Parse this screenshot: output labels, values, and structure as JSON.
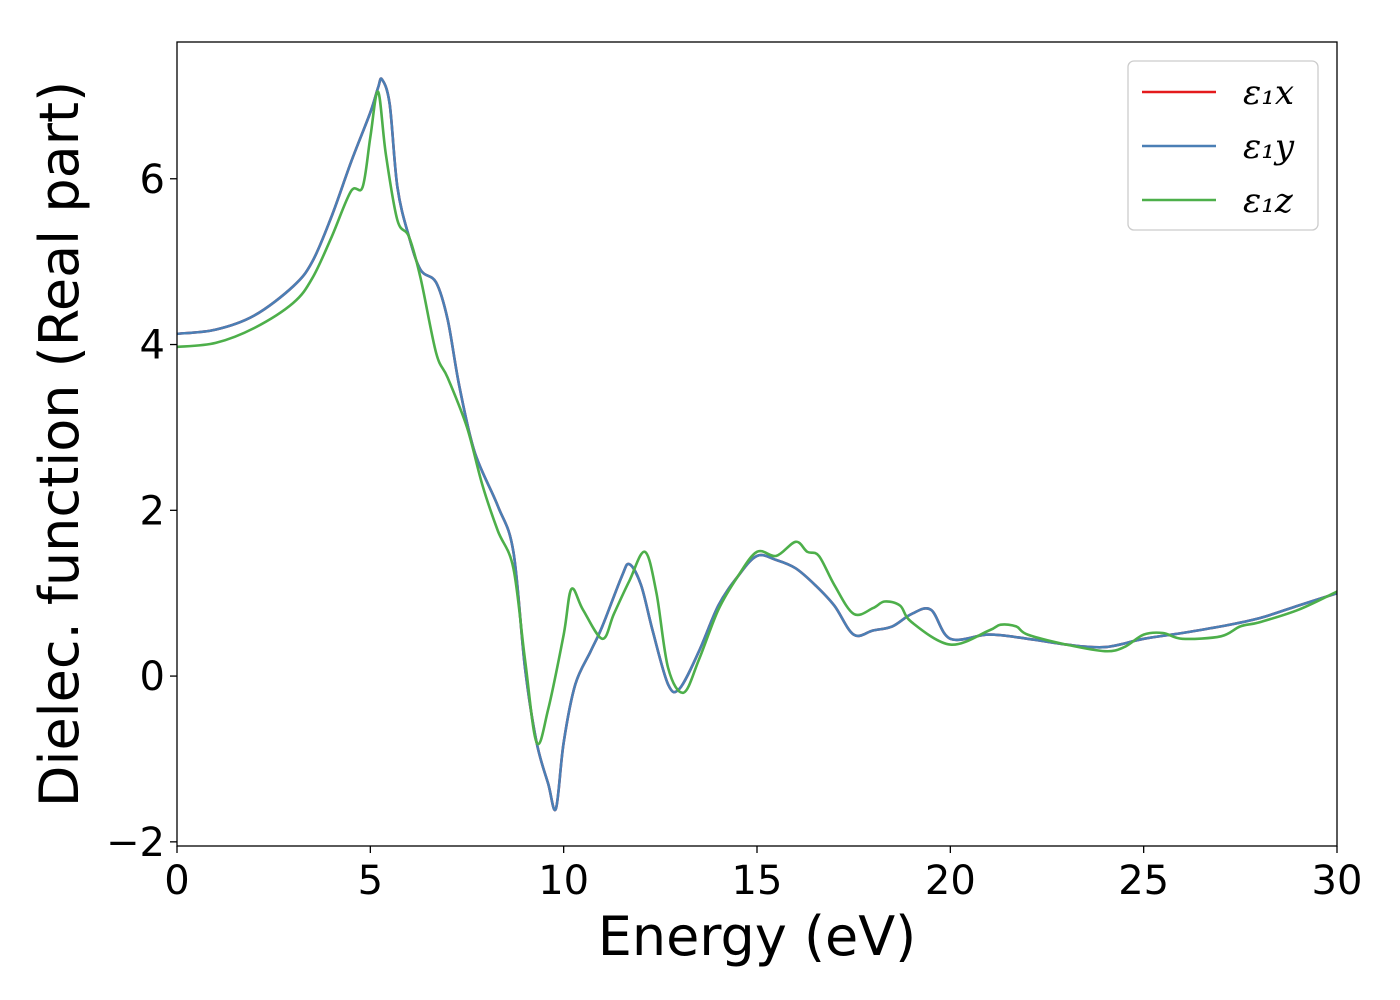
{
  "chart_data": {
    "type": "line",
    "title": "",
    "xlabel": "Energy (eV)",
    "ylabel": "Dielec. function (Real part)",
    "xlim": [
      0,
      30
    ],
    "ylim": [
      -2.05,
      7.65
    ],
    "xticks": [
      0,
      5,
      10,
      15,
      20,
      25,
      30
    ],
    "xtick_labels": [
      "0",
      "5",
      "10",
      "15",
      "20",
      "25",
      "30"
    ],
    "yticks": [
      -2,
      0,
      2,
      4,
      6
    ],
    "ytick_labels": [
      "−2",
      "0",
      "2",
      "4",
      "6"
    ],
    "grid": false,
    "legend_position": "top-right",
    "series": [
      {
        "name": "ε₁x",
        "color": "#e41a1c",
        "points": [
          [
            0,
            4.13
          ],
          [
            1,
            4.18
          ],
          [
            2,
            4.35
          ],
          [
            3,
            4.7
          ],
          [
            3.5,
            5.0
          ],
          [
            4,
            5.55
          ],
          [
            4.5,
            6.2
          ],
          [
            5,
            6.8
          ],
          [
            5.2,
            7.1
          ],
          [
            5.3,
            7.2
          ],
          [
            5.5,
            6.9
          ],
          [
            5.7,
            5.9
          ],
          [
            6,
            5.3
          ],
          [
            6.3,
            4.9
          ],
          [
            6.7,
            4.75
          ],
          [
            7,
            4.3
          ],
          [
            7.3,
            3.5
          ],
          [
            7.7,
            2.7
          ],
          [
            8.3,
            2.05
          ],
          [
            8.7,
            1.5
          ],
          [
            9,
            0.1
          ],
          [
            9.3,
            -0.8
          ],
          [
            9.6,
            -1.3
          ],
          [
            9.8,
            -1.6
          ],
          [
            10,
            -0.8
          ],
          [
            10.3,
            -0.1
          ],
          [
            10.7,
            0.3
          ],
          [
            11,
            0.6
          ],
          [
            11.5,
            1.2
          ],
          [
            11.7,
            1.35
          ],
          [
            12,
            1.1
          ],
          [
            12.3,
            0.55
          ],
          [
            12.7,
            -0.1
          ],
          [
            13,
            -0.15
          ],
          [
            13.5,
            0.3
          ],
          [
            14,
            0.85
          ],
          [
            14.5,
            1.2
          ],
          [
            15,
            1.45
          ],
          [
            15.5,
            1.4
          ],
          [
            16,
            1.3
          ],
          [
            16.5,
            1.1
          ],
          [
            17,
            0.85
          ],
          [
            17.5,
            0.5
          ],
          [
            18,
            0.55
          ],
          [
            18.5,
            0.6
          ],
          [
            19,
            0.75
          ],
          [
            19.5,
            0.8
          ],
          [
            20,
            0.45
          ],
          [
            21,
            0.5
          ],
          [
            22,
            0.45
          ],
          [
            23,
            0.38
          ],
          [
            24,
            0.35
          ],
          [
            25,
            0.45
          ],
          [
            26,
            0.52
          ],
          [
            27,
            0.6
          ],
          [
            28,
            0.7
          ],
          [
            29,
            0.85
          ],
          [
            30,
            1.0
          ]
        ]
      },
      {
        "name": "ε₁y",
        "color": "#4a7fb5",
        "points": [
          [
            0,
            4.13
          ],
          [
            1,
            4.18
          ],
          [
            2,
            4.35
          ],
          [
            3,
            4.7
          ],
          [
            3.5,
            5.0
          ],
          [
            4,
            5.55
          ],
          [
            4.5,
            6.2
          ],
          [
            5,
            6.8
          ],
          [
            5.2,
            7.1
          ],
          [
            5.3,
            7.2
          ],
          [
            5.5,
            6.9
          ],
          [
            5.7,
            5.9
          ],
          [
            6,
            5.3
          ],
          [
            6.3,
            4.9
          ],
          [
            6.7,
            4.75
          ],
          [
            7,
            4.3
          ],
          [
            7.3,
            3.5
          ],
          [
            7.7,
            2.7
          ],
          [
            8.3,
            2.05
          ],
          [
            8.7,
            1.5
          ],
          [
            9,
            0.1
          ],
          [
            9.3,
            -0.8
          ],
          [
            9.6,
            -1.3
          ],
          [
            9.8,
            -1.6
          ],
          [
            10,
            -0.8
          ],
          [
            10.3,
            -0.1
          ],
          [
            10.7,
            0.3
          ],
          [
            11,
            0.6
          ],
          [
            11.5,
            1.2
          ],
          [
            11.7,
            1.35
          ],
          [
            12,
            1.1
          ],
          [
            12.3,
            0.55
          ],
          [
            12.7,
            -0.1
          ],
          [
            13,
            -0.15
          ],
          [
            13.5,
            0.3
          ],
          [
            14,
            0.85
          ],
          [
            14.5,
            1.2
          ],
          [
            15,
            1.45
          ],
          [
            15.5,
            1.4
          ],
          [
            16,
            1.3
          ],
          [
            16.5,
            1.1
          ],
          [
            17,
            0.85
          ],
          [
            17.5,
            0.5
          ],
          [
            18,
            0.55
          ],
          [
            18.5,
            0.6
          ],
          [
            19,
            0.75
          ],
          [
            19.5,
            0.8
          ],
          [
            20,
            0.45
          ],
          [
            21,
            0.5
          ],
          [
            22,
            0.45
          ],
          [
            23,
            0.38
          ],
          [
            24,
            0.35
          ],
          [
            25,
            0.45
          ],
          [
            26,
            0.52
          ],
          [
            27,
            0.6
          ],
          [
            28,
            0.7
          ],
          [
            29,
            0.85
          ],
          [
            30,
            1.0
          ]
        ]
      },
      {
        "name": "ε₁z",
        "color": "#4daf4a",
        "points": [
          [
            0,
            3.97
          ],
          [
            1,
            4.02
          ],
          [
            2,
            4.2
          ],
          [
            3,
            4.5
          ],
          [
            3.5,
            4.8
          ],
          [
            4,
            5.3
          ],
          [
            4.5,
            5.85
          ],
          [
            4.8,
            5.9
          ],
          [
            5,
            6.5
          ],
          [
            5.2,
            7.05
          ],
          [
            5.4,
            6.3
          ],
          [
            5.7,
            5.5
          ],
          [
            6,
            5.3
          ],
          [
            6.3,
            4.8
          ],
          [
            6.7,
            3.9
          ],
          [
            7,
            3.6
          ],
          [
            7.5,
            3.0
          ],
          [
            7.9,
            2.3
          ],
          [
            8.3,
            1.75
          ],
          [
            8.7,
            1.3
          ],
          [
            9,
            0.2
          ],
          [
            9.3,
            -0.8
          ],
          [
            9.6,
            -0.4
          ],
          [
            10,
            0.5
          ],
          [
            10.2,
            1.05
          ],
          [
            10.5,
            0.8
          ],
          [
            11,
            0.45
          ],
          [
            11.3,
            0.75
          ],
          [
            11.7,
            1.15
          ],
          [
            12.1,
            1.5
          ],
          [
            12.4,
            1.0
          ],
          [
            12.7,
            0.1
          ],
          [
            13.1,
            -0.2
          ],
          [
            13.5,
            0.2
          ],
          [
            14,
            0.8
          ],
          [
            14.5,
            1.2
          ],
          [
            15,
            1.5
          ],
          [
            15.5,
            1.45
          ],
          [
            16,
            1.62
          ],
          [
            16.3,
            1.5
          ],
          [
            16.6,
            1.45
          ],
          [
            17,
            1.1
          ],
          [
            17.5,
            0.75
          ],
          [
            18,
            0.82
          ],
          [
            18.3,
            0.9
          ],
          [
            18.7,
            0.85
          ],
          [
            19,
            0.65
          ],
          [
            20,
            0.38
          ],
          [
            21,
            0.55
          ],
          [
            21.3,
            0.62
          ],
          [
            21.7,
            0.6
          ],
          [
            22,
            0.5
          ],
          [
            23,
            0.38
          ],
          [
            24,
            0.3
          ],
          [
            24.5,
            0.35
          ],
          [
            25,
            0.5
          ],
          [
            25.5,
            0.52
          ],
          [
            26,
            0.45
          ],
          [
            27,
            0.48
          ],
          [
            27.5,
            0.6
          ],
          [
            28,
            0.65
          ],
          [
            29,
            0.8
          ],
          [
            30,
            1.02
          ]
        ]
      }
    ]
  }
}
